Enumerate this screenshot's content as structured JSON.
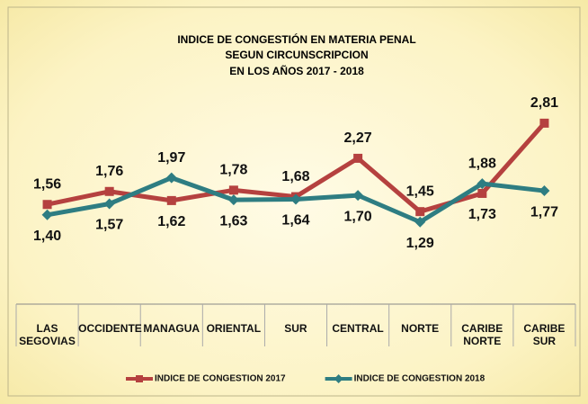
{
  "chart_data": {
    "type": "line",
    "title": [
      "INDICE DE CONGESTIÓN EN MATERIA PENAL",
      "SEGUN CIRCUNSCRIPCION",
      "EN LOS AÑOS 2017 - 2018"
    ],
    "categories": [
      "LAS\nSEGOVIAS",
      "OCCIDENTE",
      "MANAGUA",
      "ORIENTAL",
      "SUR",
      "CENTRAL",
      "NORTE",
      "CARIBE\nNORTE",
      "CARIBE\nSUR"
    ],
    "series": [
      {
        "name": "INDICE DE CONGESTION 2017",
        "color": "#b5413f",
        "marker": "square",
        "values": [
          1.56,
          1.76,
          1.62,
          1.78,
          1.68,
          2.27,
          1.45,
          1.73,
          2.81
        ],
        "value_labels": [
          "1,56",
          "1,76",
          "1,62",
          "1,78",
          "1,68",
          "2,27",
          "1,45",
          "1,73",
          "2,81"
        ]
      },
      {
        "name": "INDICE DE CONGESTION 2018",
        "color": "#2e7d82",
        "marker": "diamond",
        "values": [
          1.4,
          1.57,
          1.97,
          1.63,
          1.64,
          1.7,
          1.29,
          1.88,
          1.77
        ],
        "value_labels": [
          "1,40",
          "1,57",
          "1,97",
          "1,63",
          "1,64",
          "1,70",
          "1,29",
          "1,88",
          "1,77"
        ]
      }
    ],
    "ylim": [
      0,
      3.5
    ],
    "legend": "bottom"
  }
}
